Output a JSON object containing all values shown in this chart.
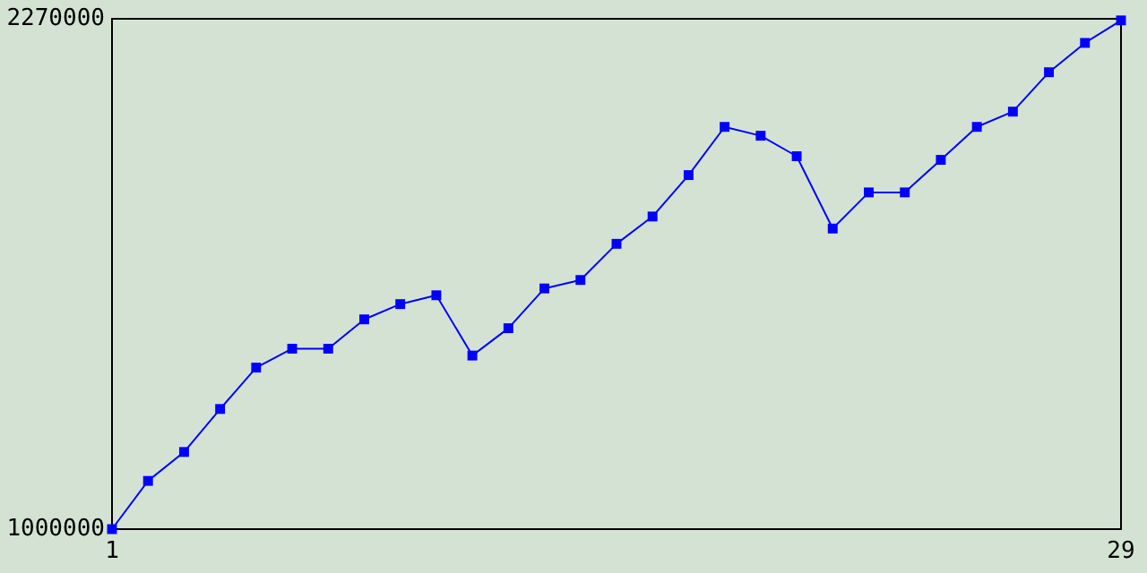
{
  "chart_data": {
    "type": "line",
    "x": [
      1,
      2,
      3,
      4,
      5,
      6,
      7,
      8,
      9,
      10,
      11,
      12,
      13,
      14,
      15,
      16,
      17,
      18,
      19,
      20,
      21,
      22,
      23,
      24,
      25,
      26,
      27,
      28,
      29
    ],
    "series": [
      {
        "color": "#0000ff",
        "values": [
          1000000,
          1120000,
          1192000,
          1299000,
          1402000,
          1449000,
          1449000,
          1522000,
          1560000,
          1582000,
          1432000,
          1500000,
          1599000,
          1620000,
          1710000,
          1778000,
          1881000,
          2001000,
          1979000,
          1928000,
          1748000,
          1838000,
          1838000,
          1919000,
          2001000,
          2039000,
          2137000,
          2210000,
          2266000
        ]
      }
    ],
    "xlim": [
      1,
      29
    ],
    "xticks": [
      1,
      29
    ],
    "ylim": [
      1000000,
      2270000
    ],
    "yticks": [
      1000000,
      2270000
    ],
    "grid": false,
    "marker": "square",
    "line_style": "solid"
  }
}
